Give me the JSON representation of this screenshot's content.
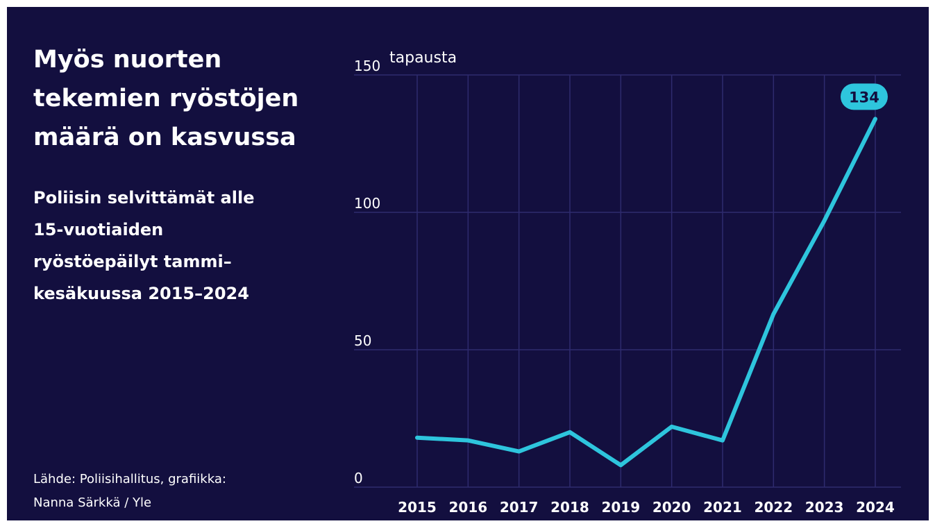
{
  "chart_data": {
    "type": "line",
    "title": "Myös nuorten tekemien ryöstöjen määrä on kasvussa",
    "subtitle": "Poliisin selvittämät alle 15-vuotiaiden ryöstöepäilyt tammi–kesäkuussa 2015–2024",
    "source": "Lähde: Poliisihallitus, grafiikka: Nanna Särkkä / Yle",
    "y_label": "tapausta",
    "categories": [
      "2015",
      "2016",
      "2017",
      "2018",
      "2019",
      "2020",
      "2021",
      "2022",
      "2023",
      "2024"
    ],
    "series": [
      {
        "name": "ryöstöepäilyt",
        "color": "#2ec5dd",
        "values": [
          18,
          17,
          13,
          20,
          8,
          22,
          17,
          63,
          97,
          134
        ]
      }
    ],
    "ylim": [
      0,
      150
    ],
    "yticks": [
      0,
      50,
      100,
      150
    ],
    "grid": true
  }
}
